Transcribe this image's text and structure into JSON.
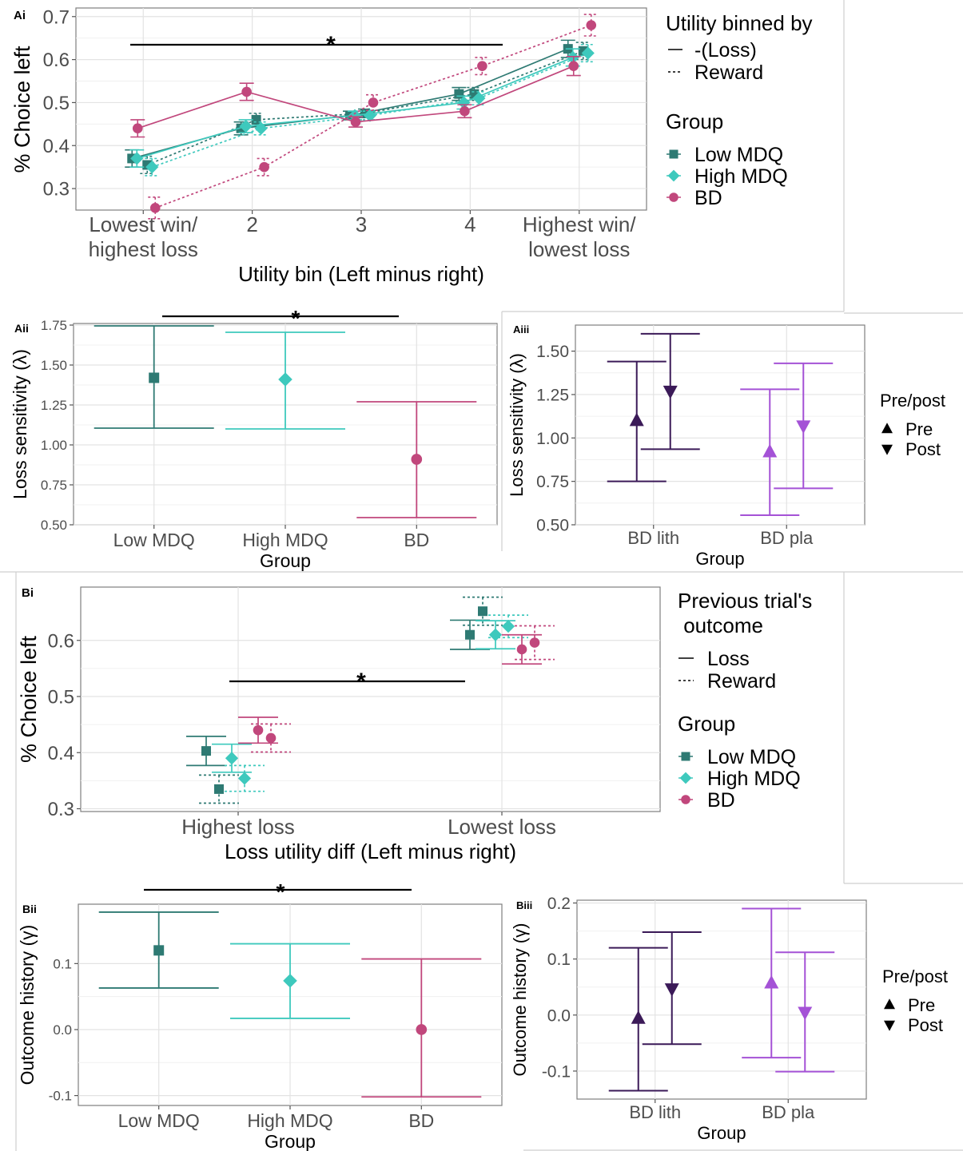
{
  "colors": {
    "low_mdq": "#2e7a73",
    "high_mdq": "#3ec9bd",
    "bd": "#c1477c",
    "lith": "#3b1a58",
    "pla": "#a452d6"
  },
  "chart_data": [
    {
      "id": "Ai",
      "panel_label": "Ai",
      "type": "line",
      "xlabel": "Utility bin (Left minus right)",
      "ylabel": "% Choice left",
      "ylim": [
        0.25,
        0.72
      ],
      "yticks": [
        "0.3",
        "0.4",
        "0.5",
        "0.6",
        "0.7"
      ],
      "categories": [
        "Lowest win/\nhighest loss",
        "2",
        "3",
        "4",
        "Highest win/\nlowest loss"
      ],
      "significance": "*",
      "legend": {
        "linetype_title": "Utility binned by",
        "linetypes": [
          "-(Loss)",
          "Reward"
        ],
        "group_title": "Group",
        "groups": [
          "Low MDQ",
          "High MDQ",
          "BD"
        ]
      },
      "series": [
        {
          "group": "Low MDQ",
          "linetype": "-(Loss)",
          "values": [
            0.37,
            0.44,
            0.47,
            0.52,
            0.625
          ],
          "err": [
            0.02,
            0.015,
            0.01,
            0.015,
            0.02
          ]
        },
        {
          "group": "Low MDQ",
          "linetype": "Reward",
          "values": [
            0.355,
            0.46,
            0.475,
            0.52,
            0.62
          ],
          "err": [
            0.02,
            0.015,
            0.01,
            0.015,
            0.02
          ]
        },
        {
          "group": "High MDQ",
          "linetype": "-(Loss)",
          "values": [
            0.37,
            0.445,
            0.47,
            0.5,
            0.605
          ],
          "err": [
            0.02,
            0.015,
            0.01,
            0.015,
            0.02
          ]
        },
        {
          "group": "High MDQ",
          "linetype": "Reward",
          "values": [
            0.35,
            0.44,
            0.47,
            0.51,
            0.615
          ],
          "err": [
            0.02,
            0.015,
            0.01,
            0.015,
            0.02
          ]
        },
        {
          "group": "BD",
          "linetype": "-(Loss)",
          "values": [
            0.44,
            0.525,
            0.455,
            0.48,
            0.585
          ],
          "err": [
            0.02,
            0.02,
            0.012,
            0.015,
            0.022
          ]
        },
        {
          "group": "BD",
          "linetype": "Reward",
          "values": [
            0.255,
            0.35,
            0.5,
            0.585,
            0.68
          ],
          "err": [
            0.025,
            0.02,
            0.018,
            0.02,
            0.025
          ]
        }
      ]
    },
    {
      "id": "Aii",
      "panel_label": "Aii",
      "type": "scatter",
      "xlabel": "Group",
      "ylabel": "Loss sensitivity (λ)",
      "ylim": [
        0.5,
        1.76
      ],
      "yticks": [
        "0.50",
        "0.75",
        "1.00",
        "1.25",
        "1.50",
        "1.75"
      ],
      "categories": [
        "Low MDQ",
        "High MDQ",
        "BD"
      ],
      "significance": "*",
      "series": [
        {
          "group": "Low MDQ",
          "value": 1.42,
          "lower": 1.105,
          "upper": 1.745
        },
        {
          "group": "High MDQ",
          "value": 1.41,
          "lower": 1.1,
          "upper": 1.705
        },
        {
          "group": "BD",
          "value": 0.91,
          "lower": 0.545,
          "upper": 1.27
        }
      ]
    },
    {
      "id": "Aiii",
      "panel_label": "Aiii",
      "type": "scatter",
      "xlabel": "Group",
      "ylabel": "Loss sensitivity (λ)",
      "ylim": [
        0.5,
        1.65
      ],
      "yticks": [
        "0.50",
        "0.75",
        "1.00",
        "1.25",
        "1.50"
      ],
      "categories": [
        "BD lith",
        "BD pla"
      ],
      "legend": {
        "title": "Pre/post",
        "items": [
          "Pre",
          "Post"
        ]
      },
      "series": [
        {
          "group": "BD lith",
          "time": "Pre",
          "value": 1.1,
          "lower": 0.75,
          "upper": 1.44
        },
        {
          "group": "BD lith",
          "time": "Post",
          "value": 1.27,
          "lower": 0.935,
          "upper": 1.6
        },
        {
          "group": "BD pla",
          "time": "Pre",
          "value": 0.92,
          "lower": 0.555,
          "upper": 1.28
        },
        {
          "group": "BD pla",
          "time": "Post",
          "value": 1.07,
          "lower": 0.71,
          "upper": 1.43
        }
      ]
    },
    {
      "id": "Bi",
      "panel_label": "Bi",
      "type": "scatter",
      "xlabel": "Loss utility diff (Left minus right)",
      "ylabel": "% Choice left",
      "ylim": [
        0.295,
        0.695
      ],
      "yticks": [
        "0.3",
        "0.4",
        "0.5",
        "0.6"
      ],
      "categories": [
        "Highest loss",
        "Lowest loss"
      ],
      "significance": "*",
      "legend": {
        "linetype_title": "Previous trial's\n outcome",
        "linetypes": [
          "Loss",
          "Reward"
        ],
        "group_title": "Group",
        "groups": [
          "Low MDQ",
          "High MDQ",
          "BD"
        ]
      },
      "series": [
        {
          "group": "Low MDQ",
          "linetype": "Loss",
          "values": [
            0.403,
            0.61
          ],
          "err": [
            0.026,
            0.026
          ]
        },
        {
          "group": "Low MDQ",
          "linetype": "Reward",
          "values": [
            0.335,
            0.652
          ],
          "err": [
            0.025,
            0.025
          ]
        },
        {
          "group": "High MDQ",
          "linetype": "Loss",
          "values": [
            0.39,
            0.61
          ],
          "err": [
            0.025,
            0.025
          ]
        },
        {
          "group": "High MDQ",
          "linetype": "Reward",
          "values": [
            0.354,
            0.625
          ],
          "err": [
            0.023,
            0.02
          ]
        },
        {
          "group": "BD",
          "linetype": "Loss",
          "values": [
            0.44,
            0.584
          ],
          "err": [
            0.023,
            0.026
          ]
        },
        {
          "group": "BD",
          "linetype": "Reward",
          "values": [
            0.426,
            0.596
          ],
          "err": [
            0.025,
            0.03
          ]
        }
      ]
    },
    {
      "id": "Bii",
      "panel_label": "Bii",
      "type": "scatter",
      "xlabel": "Group",
      "ylabel": "Outcome history (γ)",
      "ylim": [
        -0.115,
        0.19
      ],
      "yticks": [
        "-0.1",
        "0.0",
        "0.1"
      ],
      "categories": [
        "Low MDQ",
        "High MDQ",
        "BD"
      ],
      "significance": "*",
      "series": [
        {
          "group": "Low MDQ",
          "value": 0.12,
          "lower": 0.063,
          "upper": 0.178
        },
        {
          "group": "High MDQ",
          "value": 0.074,
          "lower": 0.017,
          "upper": 0.13
        },
        {
          "group": "BD",
          "value": 0.0,
          "lower": -0.102,
          "upper": 0.107
        }
      ]
    },
    {
      "id": "Biii",
      "panel_label": "Biii",
      "type": "scatter",
      "xlabel": "Group",
      "ylabel": "Outcome history (γ)",
      "ylim": [
        -0.15,
        0.205
      ],
      "yticks": [
        "-0.1",
        "0.0",
        "0.1",
        "0.2"
      ],
      "categories": [
        "BD lith",
        "BD pla"
      ],
      "legend": {
        "title": "Pre/post",
        "items": [
          "Pre",
          "Post"
        ]
      },
      "series": [
        {
          "group": "BD lith",
          "time": "Pre",
          "value": -0.006,
          "lower": -0.135,
          "upper": 0.12
        },
        {
          "group": "BD lith",
          "time": "Post",
          "value": 0.047,
          "lower": -0.052,
          "upper": 0.148
        },
        {
          "group": "BD pla",
          "time": "Pre",
          "value": 0.057,
          "lower": -0.076,
          "upper": 0.19
        },
        {
          "group": "BD pla",
          "time": "Post",
          "value": 0.005,
          "lower": -0.101,
          "upper": 0.112
        }
      ]
    }
  ]
}
